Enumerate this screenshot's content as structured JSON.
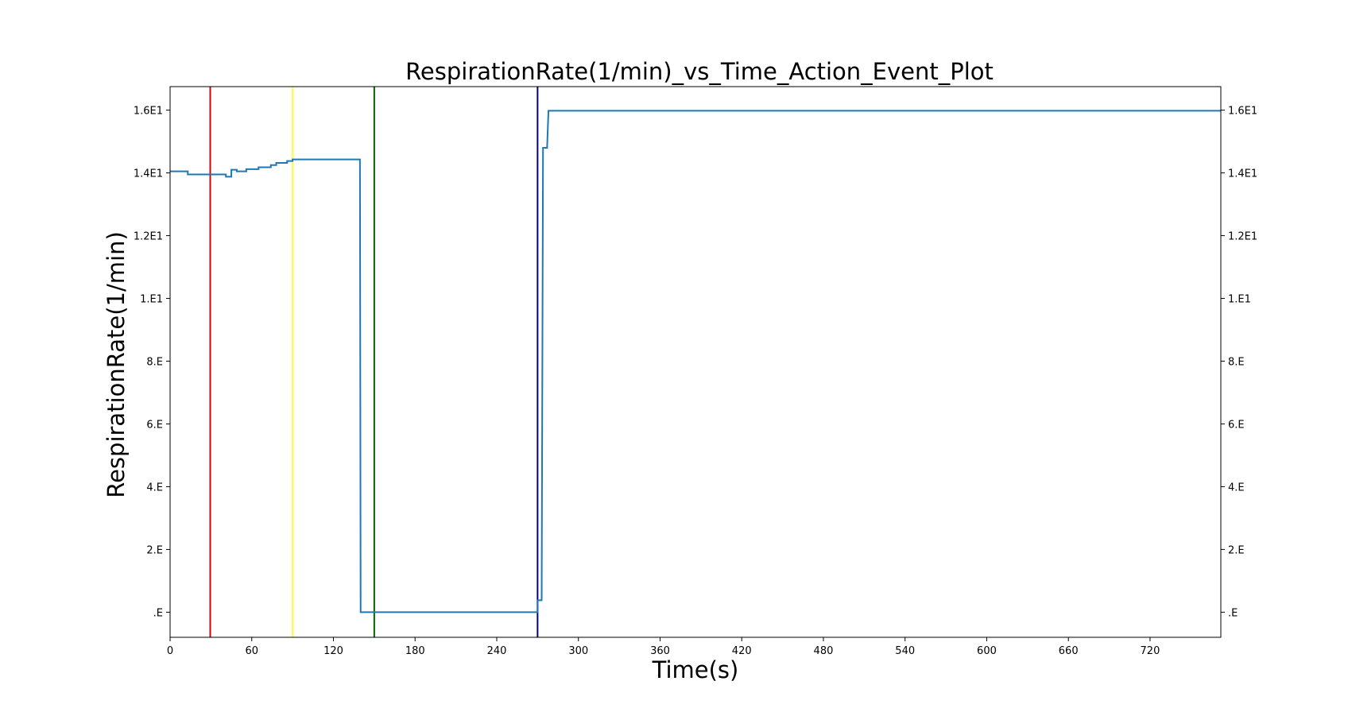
{
  "chart_data": {
    "type": "line",
    "title": "RespirationRate(1/min)_vs_Time_Action_Event_Plot",
    "xlabel": "Time(s)",
    "ylabel": "RespirationRate(1/min)",
    "xlim": [
      0,
      772
    ],
    "ylim": [
      -0.8,
      16.75
    ],
    "x_ticks": [
      0,
      60,
      120,
      180,
      240,
      300,
      360,
      420,
      480,
      540,
      600,
      660,
      720
    ],
    "y_ticks": [
      0,
      2,
      4,
      6,
      8,
      10,
      12,
      14,
      16
    ],
    "y_tick_labels": [
      ".E",
      "2.E",
      "4.E",
      "6.E",
      "8.E",
      "1.E1",
      "1.2E1",
      "1.4E1",
      "1.6E1"
    ],
    "grid": false,
    "right_axis_mirrored": true,
    "line_color": "#1f77b4",
    "series": [
      {
        "values_step": true,
        "points": [
          [
            0,
            14.05
          ],
          [
            13,
            14.05
          ],
          [
            13,
            13.95
          ],
          [
            41,
            13.95
          ],
          [
            41,
            13.88
          ],
          [
            45,
            13.88
          ],
          [
            45,
            14.1
          ],
          [
            49,
            14.1
          ],
          [
            49,
            14.05
          ],
          [
            56,
            14.05
          ],
          [
            56,
            14.12
          ],
          [
            65,
            14.12
          ],
          [
            65,
            14.18
          ],
          [
            74,
            14.18
          ],
          [
            74,
            14.25
          ],
          [
            78,
            14.25
          ],
          [
            78,
            14.32
          ],
          [
            86,
            14.32
          ],
          [
            86,
            14.38
          ],
          [
            90,
            14.38
          ],
          [
            90,
            14.43
          ],
          [
            139.5,
            14.43
          ],
          [
            140,
            0.0
          ],
          [
            270,
            0.0
          ],
          [
            270,
            0.38
          ],
          [
            273,
            0.38
          ],
          [
            274,
            14.8
          ],
          [
            277,
            14.8
          ],
          [
            278,
            15.98
          ],
          [
            772,
            15.98
          ]
        ]
      }
    ],
    "event_lines": [
      {
        "x": 29.5,
        "color": "#e00000"
      },
      {
        "x": 90,
        "color": "#ffff33"
      },
      {
        "x": 150,
        "color": "#006400"
      },
      {
        "x": 270,
        "color": "#00008b"
      }
    ]
  }
}
